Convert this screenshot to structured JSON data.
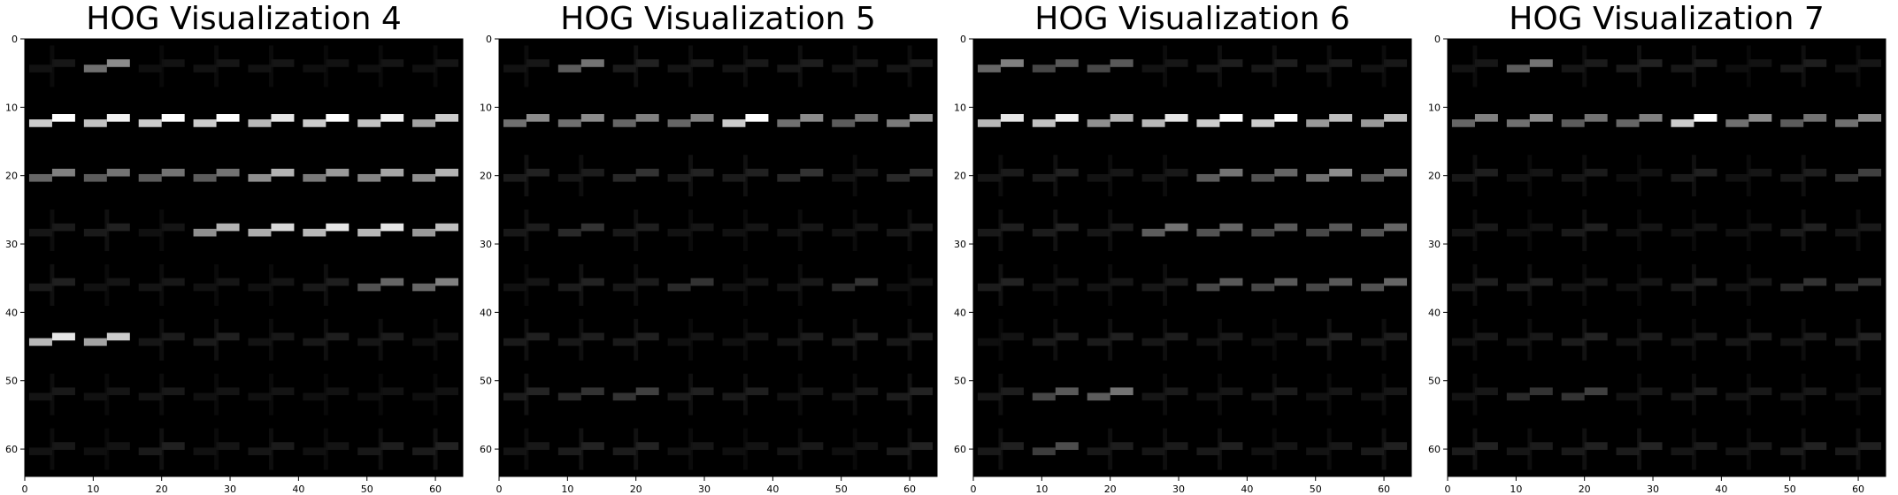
{
  "figure": {
    "background": "#ffffff",
    "colormap": "gray",
    "panel_background": "#000000"
  },
  "chart_data": [
    {
      "type": "heatmap",
      "title": "HOG Visualization 4",
      "xlim": [
        0,
        64
      ],
      "ylim": [
        64,
        0
      ],
      "xticks": [
        "0",
        "10",
        "20",
        "30",
        "40",
        "50",
        "60"
      ],
      "yticks": [
        "0",
        "10",
        "20",
        "30",
        "40",
        "50",
        "60"
      ],
      "grid": false,
      "cell_size": 8,
      "bright_cells": [
        {
          "row": 0,
          "col": 1,
          "intensity": 0.55
        },
        {
          "row": 1,
          "col": 0,
          "intensity": 1.0
        },
        {
          "row": 1,
          "col": 1,
          "intensity": 0.95
        },
        {
          "row": 1,
          "col": 2,
          "intensity": 1.0
        },
        {
          "row": 1,
          "col": 3,
          "intensity": 1.0
        },
        {
          "row": 1,
          "col": 4,
          "intensity": 0.9
        },
        {
          "row": 1,
          "col": 5,
          "intensity": 1.0
        },
        {
          "row": 1,
          "col": 6,
          "intensity": 0.95
        },
        {
          "row": 1,
          "col": 7,
          "intensity": 0.8
        },
        {
          "row": 2,
          "col": 0,
          "intensity": 0.5
        },
        {
          "row": 2,
          "col": 1,
          "intensity": 0.45
        },
        {
          "row": 2,
          "col": 2,
          "intensity": 0.45
        },
        {
          "row": 2,
          "col": 3,
          "intensity": 0.45
        },
        {
          "row": 2,
          "col": 4,
          "intensity": 0.7
        },
        {
          "row": 2,
          "col": 5,
          "intensity": 0.6
        },
        {
          "row": 2,
          "col": 6,
          "intensity": 0.65
        },
        {
          "row": 2,
          "col": 7,
          "intensity": 0.7
        },
        {
          "row": 3,
          "col": 3,
          "intensity": 0.7
        },
        {
          "row": 3,
          "col": 4,
          "intensity": 0.85
        },
        {
          "row": 3,
          "col": 5,
          "intensity": 0.9
        },
        {
          "row": 3,
          "col": 6,
          "intensity": 0.9
        },
        {
          "row": 3,
          "col": 7,
          "intensity": 0.75
        },
        {
          "row": 4,
          "col": 6,
          "intensity": 0.4
        },
        {
          "row": 4,
          "col": 7,
          "intensity": 0.5
        },
        {
          "row": 5,
          "col": 0,
          "intensity": 0.9
        },
        {
          "row": 5,
          "col": 1,
          "intensity": 0.8
        }
      ]
    },
    {
      "type": "heatmap",
      "title": "HOG Visualization 5",
      "xlim": [
        0,
        64
      ],
      "ylim": [
        64,
        0
      ],
      "xticks": [
        "0",
        "10",
        "20",
        "30",
        "40",
        "50",
        "60"
      ],
      "yticks": [
        "0",
        "10",
        "20",
        "30",
        "40",
        "50",
        "60"
      ],
      "grid": false,
      "cell_size": 8,
      "bright_cells": [
        {
          "row": 0,
          "col": 1,
          "intensity": 0.45
        },
        {
          "row": 1,
          "col": 0,
          "intensity": 0.55
        },
        {
          "row": 1,
          "col": 1,
          "intensity": 0.55
        },
        {
          "row": 1,
          "col": 2,
          "intensity": 0.5
        },
        {
          "row": 1,
          "col": 3,
          "intensity": 0.5
        },
        {
          "row": 1,
          "col": 4,
          "intensity": 1.0
        },
        {
          "row": 1,
          "col": 5,
          "intensity": 0.55
        },
        {
          "row": 1,
          "col": 6,
          "intensity": 0.45
        },
        {
          "row": 1,
          "col": 7,
          "intensity": 0.6
        },
        {
          "row": 2,
          "col": 2,
          "intensity": 0.2
        },
        {
          "row": 2,
          "col": 5,
          "intensity": 0.2
        },
        {
          "row": 2,
          "col": 7,
          "intensity": 0.2
        },
        {
          "row": 3,
          "col": 1,
          "intensity": 0.2
        },
        {
          "row": 4,
          "col": 3,
          "intensity": 0.2
        },
        {
          "row": 4,
          "col": 6,
          "intensity": 0.2
        },
        {
          "row": 6,
          "col": 1,
          "intensity": 0.2
        },
        {
          "row": 6,
          "col": 2,
          "intensity": 0.25
        }
      ]
    },
    {
      "type": "heatmap",
      "title": "HOG Visualization 6",
      "xlim": [
        0,
        64
      ],
      "ylim": [
        64,
        0
      ],
      "xticks": [
        "0",
        "10",
        "20",
        "30",
        "40",
        "50",
        "60"
      ],
      "yticks": [
        "0",
        "10",
        "20",
        "30",
        "40",
        "50",
        "60"
      ],
      "grid": false,
      "cell_size": 8,
      "bright_cells": [
        {
          "row": 0,
          "col": 0,
          "intensity": 0.5
        },
        {
          "row": 0,
          "col": 1,
          "intensity": 0.35
        },
        {
          "row": 0,
          "col": 2,
          "intensity": 0.35
        },
        {
          "row": 1,
          "col": 0,
          "intensity": 0.9
        },
        {
          "row": 1,
          "col": 1,
          "intensity": 0.95
        },
        {
          "row": 1,
          "col": 2,
          "intensity": 0.7
        },
        {
          "row": 1,
          "col": 3,
          "intensity": 0.9
        },
        {
          "row": 1,
          "col": 4,
          "intensity": 1.0
        },
        {
          "row": 1,
          "col": 5,
          "intensity": 1.0
        },
        {
          "row": 1,
          "col": 6,
          "intensity": 0.75
        },
        {
          "row": 1,
          "col": 7,
          "intensity": 0.75
        },
        {
          "row": 2,
          "col": 4,
          "intensity": 0.45
        },
        {
          "row": 2,
          "col": 5,
          "intensity": 0.4
        },
        {
          "row": 2,
          "col": 6,
          "intensity": 0.55
        },
        {
          "row": 2,
          "col": 7,
          "intensity": 0.45
        },
        {
          "row": 3,
          "col": 3,
          "intensity": 0.45
        },
        {
          "row": 3,
          "col": 4,
          "intensity": 0.4
        },
        {
          "row": 3,
          "col": 5,
          "intensity": 0.35
        },
        {
          "row": 3,
          "col": 6,
          "intensity": 0.35
        },
        {
          "row": 3,
          "col": 7,
          "intensity": 0.4
        },
        {
          "row": 4,
          "col": 4,
          "intensity": 0.35
        },
        {
          "row": 4,
          "col": 5,
          "intensity": 0.35
        },
        {
          "row": 4,
          "col": 6,
          "intensity": 0.35
        },
        {
          "row": 4,
          "col": 7,
          "intensity": 0.4
        },
        {
          "row": 6,
          "col": 1,
          "intensity": 0.35
        },
        {
          "row": 6,
          "col": 2,
          "intensity": 0.45
        },
        {
          "row": 7,
          "col": 1,
          "intensity": 0.3
        }
      ]
    },
    {
      "type": "heatmap",
      "title": "HOG Visualization 7",
      "xlim": [
        0,
        64
      ],
      "ylim": [
        64,
        0
      ],
      "xticks": [
        "0",
        "10",
        "20",
        "30",
        "40",
        "50",
        "60"
      ],
      "yticks": [
        "0",
        "10",
        "20",
        "30",
        "40",
        "50",
        "60"
      ],
      "grid": false,
      "cell_size": 8,
      "bright_cells": [
        {
          "row": 0,
          "col": 1,
          "intensity": 0.45
        },
        {
          "row": 1,
          "col": 0,
          "intensity": 0.5
        },
        {
          "row": 1,
          "col": 1,
          "intensity": 0.55
        },
        {
          "row": 1,
          "col": 2,
          "intensity": 0.45
        },
        {
          "row": 1,
          "col": 3,
          "intensity": 0.5
        },
        {
          "row": 1,
          "col": 4,
          "intensity": 1.0
        },
        {
          "row": 1,
          "col": 5,
          "intensity": 0.55
        },
        {
          "row": 1,
          "col": 6,
          "intensity": 0.45
        },
        {
          "row": 1,
          "col": 7,
          "intensity": 0.55
        },
        {
          "row": 2,
          "col": 7,
          "intensity": 0.25
        },
        {
          "row": 4,
          "col": 6,
          "intensity": 0.2
        },
        {
          "row": 4,
          "col": 7,
          "intensity": 0.2
        },
        {
          "row": 6,
          "col": 1,
          "intensity": 0.2
        },
        {
          "row": 6,
          "col": 2,
          "intensity": 0.25
        }
      ]
    }
  ]
}
